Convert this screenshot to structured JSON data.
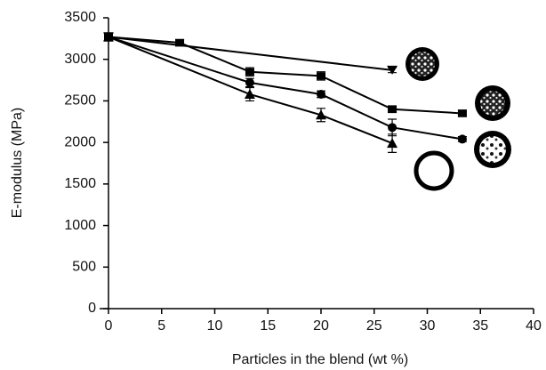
{
  "chart_data": {
    "type": "line",
    "x_label": "Particles in the blend (wt %)",
    "y_label": "E-modulus (MPa)",
    "xlim": [
      0,
      40
    ],
    "xticks": [
      0,
      5,
      10,
      15,
      20,
      25,
      30,
      35,
      40
    ],
    "ylim": [
      0,
      3500
    ],
    "yticks": [
      0,
      500,
      1000,
      1500,
      2000,
      2500,
      3000,
      3500
    ],
    "series": [
      {
        "color": "#000000",
        "marker": "triangle-down",
        "x": [
          0,
          26.7
        ],
        "values": [
          3270,
          2870
        ],
        "errors": [
          40,
          30
        ]
      },
      {
        "color": "#000000",
        "marker": "square",
        "x": [
          0,
          6.7,
          13.3,
          20,
          26.7,
          33.3
        ],
        "values": [
          3270,
          3200,
          2850,
          2800,
          2400,
          2350
        ],
        "errors": [
          50,
          40,
          50,
          50,
          40,
          40
        ]
      },
      {
        "color": "#000000",
        "marker": "circle",
        "x": [
          0,
          13.3,
          20,
          26.7,
          33.3
        ],
        "values": [
          3270,
          2720,
          2580,
          2180,
          2040
        ],
        "errors": [
          40,
          50,
          40,
          100,
          30
        ]
      },
      {
        "color": "#000000",
        "marker": "triangle-up",
        "x": [
          0,
          13.3,
          20,
          26.7
        ],
        "values": [
          3270,
          2580,
          2330,
          1990
        ],
        "errors": [
          40,
          80,
          80,
          110
        ]
      }
    ]
  }
}
